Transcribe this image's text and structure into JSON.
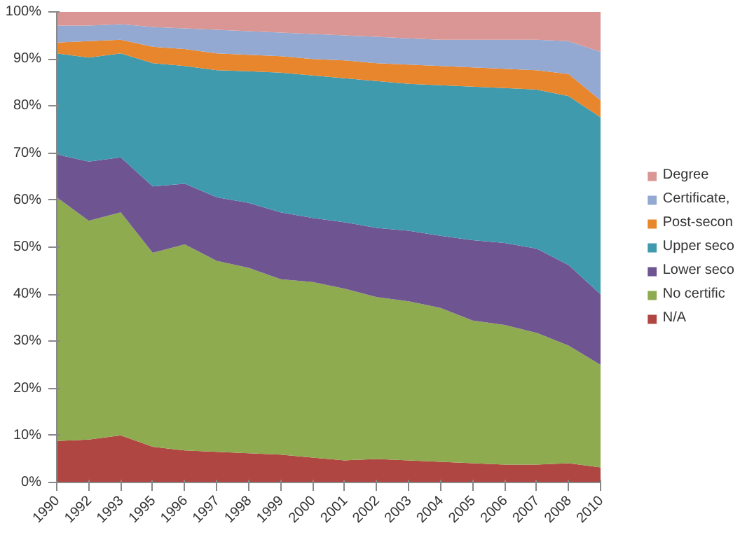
{
  "chart_data": {
    "type": "area",
    "stacked": true,
    "categories": [
      "1990",
      "1992",
      "1993",
      "1995",
      "1996",
      "1997",
      "1998",
      "1999",
      "2000",
      "2001",
      "2002",
      "2003",
      "2004",
      "2005",
      "2006",
      "2007",
      "2008",
      "2010"
    ],
    "series": [
      {
        "name": "N/A",
        "color": "#b04642",
        "values": [
          8.8,
          9.1,
          10.0,
          7.6,
          6.8,
          6.5,
          6.2,
          5.9,
          5.3,
          4.7,
          5.0,
          4.7,
          4.4,
          4.1,
          3.8,
          3.8,
          4.1,
          3.2
        ]
      },
      {
        "name": "No certific",
        "color": "#8fab4f",
        "values": [
          51.8,
          46.5,
          47.4,
          41.2,
          43.8,
          40.6,
          39.4,
          37.3,
          37.3,
          36.5,
          34.4,
          33.8,
          32.7,
          30.3,
          29.7,
          28.0,
          25.0,
          21.8
        ]
      },
      {
        "name": "Lower seco",
        "color": "#6f5492",
        "values": [
          9.1,
          12.6,
          11.7,
          14.1,
          12.9,
          13.5,
          13.8,
          14.2,
          13.6,
          14.1,
          14.7,
          15.0,
          15.3,
          17.1,
          17.4,
          17.9,
          17.1,
          15.0
        ]
      },
      {
        "name": "Upper seco",
        "color": "#3f9aae",
        "values": [
          21.5,
          22.1,
          22.1,
          26.2,
          25.0,
          27.0,
          28.0,
          29.7,
          30.3,
          30.6,
          31.2,
          31.2,
          32.0,
          32.6,
          32.9,
          33.8,
          35.9,
          37.6
        ]
      },
      {
        "name": "Post-secon",
        "color": "#e8862e",
        "values": [
          2.3,
          3.5,
          2.9,
          3.5,
          3.6,
          3.6,
          3.5,
          3.5,
          3.5,
          3.8,
          3.8,
          4.1,
          4.1,
          4.1,
          4.1,
          4.1,
          4.7,
          3.6
        ]
      },
      {
        "name": "Certificate,",
        "color": "#93a9d1",
        "values": [
          3.6,
          3.3,
          3.3,
          4.2,
          4.4,
          5.0,
          5.0,
          5.0,
          5.3,
          5.3,
          5.6,
          5.6,
          5.6,
          5.9,
          6.2,
          6.5,
          7.0,
          10.3
        ]
      },
      {
        "name": "Degree",
        "color": "#d99694",
        "values": [
          2.9,
          2.9,
          2.6,
          3.2,
          3.5,
          3.8,
          4.1,
          4.4,
          4.7,
          5.0,
          5.3,
          5.6,
          5.9,
          5.9,
          5.9,
          5.9,
          6.2,
          8.5
        ]
      }
    ],
    "ylim": [
      0,
      100
    ],
    "yticks": [
      {
        "value": 0,
        "label": "0%"
      },
      {
        "value": 10,
        "label": "10%"
      },
      {
        "value": 20,
        "label": "20%"
      },
      {
        "value": 30,
        "label": "30%"
      },
      {
        "value": 40,
        "label": "40%"
      },
      {
        "value": 50,
        "label": "50%"
      },
      {
        "value": 60,
        "label": "60%"
      },
      {
        "value": 70,
        "label": "70%"
      },
      {
        "value": 80,
        "label": "80%"
      },
      {
        "value": 90,
        "label": "90%"
      },
      {
        "value": 100,
        "label": "100%"
      }
    ],
    "grid": false,
    "legend": "right"
  }
}
